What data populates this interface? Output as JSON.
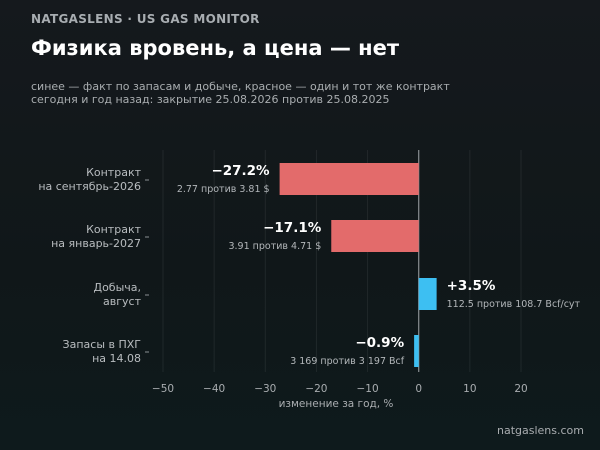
{
  "header": {
    "brand": "NATGASLENS · US GAS MONITOR",
    "title": "Физика вровень, а цена — нет",
    "subtitle_line1": "синее — факт по запасам и добыче, красное — один и тот же контракт",
    "subtitle_line2": "сегодня и год назад: закрытие 25.08.2026 против 25.08.2025"
  },
  "footer": {
    "source": "natgaslens.com"
  },
  "colors": {
    "negative_price": "#e36b6b",
    "physical": "#3dbff2",
    "background": "#12181b",
    "axis_text": "#a9adb0"
  },
  "chart_data": {
    "type": "bar",
    "orientation": "horizontal",
    "categories": [
      [
        "Контракт",
        "на сентябрь-2026"
      ],
      [
        "Контракт",
        "на январь-2027"
      ],
      [
        "Добыча,",
        "август"
      ],
      [
        "Запасы в ПХГ",
        "на 14.08"
      ]
    ],
    "values": [
      -27.2,
      -17.1,
      3.5,
      -0.9
    ],
    "value_labels": [
      "−27.2%",
      "−17.1%",
      "+3.5%",
      "−0.9%"
    ],
    "detail_labels": [
      "2.77 против 3.81 $",
      "3.91 против 4.71 $",
      "112.5 против 108.7 Bcf/сут",
      "3 169 против 3 197 Bcf"
    ],
    "bar_kinds": [
      "price",
      "price",
      "physical",
      "physical"
    ],
    "xlabel": "изменение за год, %",
    "xlim": [
      -50,
      20
    ],
    "xticks": [
      -50,
      -40,
      -30,
      -20,
      -10,
      0,
      10,
      20
    ],
    "xtick_labels": [
      "−50",
      "−40",
      "−30",
      "−20",
      "−10",
      "0",
      "10",
      "20"
    ],
    "grid": true
  }
}
